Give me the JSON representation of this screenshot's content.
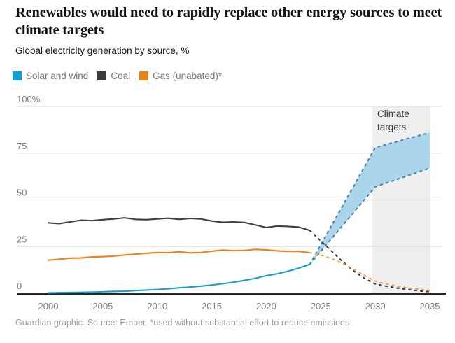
{
  "header": {
    "title": "Renewables would need to rapidly replace other energy sources to meet climate targets",
    "subtitle": "Global electricity generation by source, %"
  },
  "legend": [
    {
      "label": "Solar and wind",
      "color": "#0d9fd8"
    },
    {
      "label": "Coal",
      "color": "#3b3b3b"
    },
    {
      "label": "Gas (unabated)*",
      "color": "#ee8019"
    }
  ],
  "annotation": {
    "line1": "Climate",
    "line2": "targets"
  },
  "footer": "Guardian graphic. Source: Ember. *used without substantial effort to reduce emissions",
  "chart_data": {
    "type": "line",
    "title": "Renewables would need to rapidly replace other energy sources to meet climate targets",
    "subtitle": "Global electricity generation by source, %",
    "xlim": [
      2000,
      2035
    ],
    "ylim": [
      0,
      100
    ],
    "x_ticks": [
      2000,
      2005,
      2010,
      2015,
      2020,
      2025,
      2030,
      2035
    ],
    "y_ticks": [
      {
        "value": 0,
        "label": "0"
      },
      {
        "value": 25,
        "label": "25"
      },
      {
        "value": 50,
        "label": "50"
      },
      {
        "value": 75,
        "label": "75"
      },
      {
        "value": 100,
        "label": "100%"
      }
    ],
    "grid": "horizontal",
    "legend_position": "top",
    "target_region": {
      "label": "Climate targets",
      "start_year": 2030,
      "end_year": 2035,
      "fill": "#efefef"
    },
    "series": [
      {
        "name": "Solar and wind (history)",
        "style": "solid",
        "color": "#1a9fc4",
        "x": [
          2000,
          2001,
          2002,
          2003,
          2004,
          2005,
          2006,
          2007,
          2008,
          2009,
          2010,
          2011,
          2012,
          2013,
          2014,
          2015,
          2016,
          2017,
          2018,
          2019,
          2020,
          2021,
          2022,
          2023,
          2024
        ],
        "values": [
          0.2,
          0.3,
          0.4,
          0.5,
          0.6,
          0.8,
          1.0,
          1.1,
          1.4,
          1.7,
          2.0,
          2.4,
          2.9,
          3.3,
          3.8,
          4.4,
          5.1,
          5.9,
          6.9,
          8.0,
          9.4,
          10.4,
          11.8,
          13.5,
          15.5
        ]
      },
      {
        "name": "Coal (history)",
        "style": "solid",
        "color": "#3f3f3f",
        "x": [
          2000,
          2001,
          2002,
          2003,
          2004,
          2005,
          2006,
          2007,
          2008,
          2009,
          2010,
          2011,
          2012,
          2013,
          2014,
          2015,
          2016,
          2017,
          2018,
          2019,
          2020,
          2021,
          2022,
          2023,
          2024
        ],
        "values": [
          37.7,
          37.3,
          38.2,
          39.1,
          38.9,
          39.4,
          39.8,
          40.4,
          39.6,
          39.4,
          39.8,
          40.2,
          39.6,
          40.1,
          39.8,
          38.7,
          38.0,
          38.2,
          37.9,
          36.6,
          35.2,
          36.0,
          35.8,
          35.4,
          33.6
        ]
      },
      {
        "name": "Gas unabated (history)",
        "style": "solid",
        "color": "#ee8019",
        "x": [
          2000,
          2001,
          2002,
          2003,
          2004,
          2005,
          2006,
          2007,
          2008,
          2009,
          2010,
          2011,
          2012,
          2013,
          2014,
          2015,
          2016,
          2017,
          2018,
          2019,
          2020,
          2021,
          2022,
          2023,
          2024
        ],
        "values": [
          17.7,
          18.2,
          18.8,
          18.9,
          19.4,
          19.6,
          19.9,
          20.5,
          20.9,
          21.4,
          21.8,
          21.7,
          22.2,
          21.6,
          21.8,
          22.5,
          23.1,
          22.8,
          22.9,
          23.5,
          23.2,
          22.7,
          22.4,
          22.4,
          21.7
        ]
      },
      {
        "name": "Coal (climate target pathway)",
        "style": "dashed",
        "color": "#2e3c4c",
        "x": [
          2024,
          2025,
          2026,
          2027,
          2028,
          2029,
          2030,
          2031,
          2032,
          2033,
          2034,
          2035
        ],
        "values": [
          33.6,
          28.0,
          22.5,
          17.0,
          12.0,
          8.0,
          5.0,
          3.8,
          2.8,
          2.0,
          1.3,
          0.8
        ]
      },
      {
        "name": "Gas (climate target pathway)",
        "style": "dashed",
        "color": "#efa050",
        "x": [
          2024,
          2025,
          2026,
          2027,
          2028,
          2029,
          2030,
          2031,
          2032,
          2033,
          2034,
          2035
        ],
        "values": [
          21.7,
          20.5,
          18.5,
          16.0,
          13.0,
          9.5,
          6.5,
          5.0,
          3.8,
          2.8,
          2.1,
          1.5
        ]
      }
    ],
    "target_band": {
      "name": "Solar and wind (climate target range)",
      "x": [
        2024,
        2030,
        2035
      ],
      "upper": [
        15.5,
        78,
        86
      ],
      "lower": [
        15.5,
        57,
        67
      ],
      "fill": "#abd5ea",
      "edge_color": "#4d87a6",
      "edge_style": "dashed"
    }
  }
}
